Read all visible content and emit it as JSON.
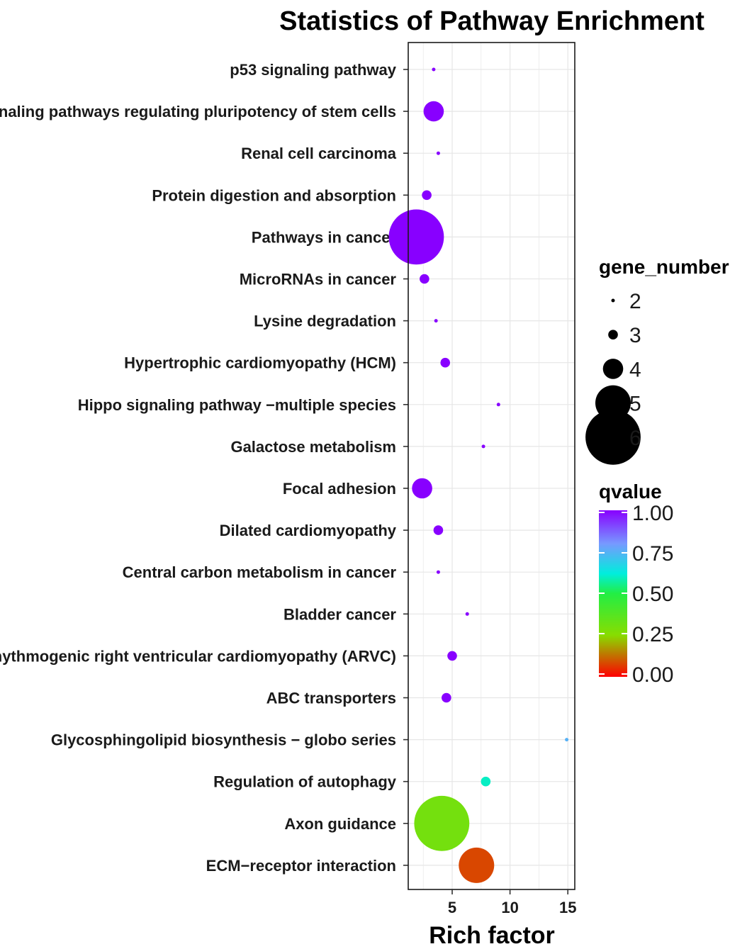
{
  "chart_data": {
    "type": "scatter",
    "title": "Statistics of Pathway Enrichment",
    "xlabel": "Rich factor",
    "ylabel": "",
    "xlim": [
      1.2,
      15.6
    ],
    "xticks": [
      5,
      10,
      15
    ],
    "grid": true,
    "size_legend": {
      "title": "gene_number",
      "values": [
        2,
        3,
        4,
        5,
        6
      ]
    },
    "color_legend": {
      "title": "qvalue",
      "ticks": [
        "1.00",
        "0.75",
        "0.50",
        "0.25",
        "0.00"
      ],
      "range": [
        0,
        1
      ]
    },
    "points": [
      {
        "pathway": "p53 signaling pathway",
        "rich_factor": 3.4,
        "gene_number": 2,
        "qvalue": 1.0
      },
      {
        "pathway": "Signaling pathways regulating pluripotency of stem cells",
        "rich_factor": 3.4,
        "gene_number": 4,
        "qvalue": 1.0
      },
      {
        "pathway": "Renal cell carcinoma",
        "rich_factor": 3.8,
        "gene_number": 2,
        "qvalue": 1.0
      },
      {
        "pathway": "Protein digestion and absorption",
        "rich_factor": 2.8,
        "gene_number": 3,
        "qvalue": 1.0
      },
      {
        "pathway": "Pathways in cancer",
        "rich_factor": 1.9,
        "gene_number": 6,
        "qvalue": 1.0
      },
      {
        "pathway": "MicroRNAs in cancer",
        "rich_factor": 2.6,
        "gene_number": 3,
        "qvalue": 1.0
      },
      {
        "pathway": "Lysine degradation",
        "rich_factor": 3.6,
        "gene_number": 2,
        "qvalue": 1.0
      },
      {
        "pathway": "Hypertrophic cardiomyopathy (HCM)",
        "rich_factor": 4.4,
        "gene_number": 3,
        "qvalue": 1.0
      },
      {
        "pathway": "Hippo signaling pathway −multiple species",
        "rich_factor": 9.0,
        "gene_number": 2,
        "qvalue": 1.0
      },
      {
        "pathway": "Galactose metabolism",
        "rich_factor": 7.7,
        "gene_number": 2,
        "qvalue": 1.0
      },
      {
        "pathway": "Focal adhesion",
        "rich_factor": 2.4,
        "gene_number": 4,
        "qvalue": 1.0
      },
      {
        "pathway": "Dilated cardiomyopathy",
        "rich_factor": 3.8,
        "gene_number": 3,
        "qvalue": 1.0
      },
      {
        "pathway": "Central carbon metabolism in cancer",
        "rich_factor": 3.8,
        "gene_number": 2,
        "qvalue": 1.0
      },
      {
        "pathway": "Bladder cancer",
        "rich_factor": 6.3,
        "gene_number": 2,
        "qvalue": 1.0
      },
      {
        "pathway": "Arrhythmogenic right ventricular cardiomyopathy (ARVC)",
        "rich_factor": 5.0,
        "gene_number": 3,
        "qvalue": 1.0
      },
      {
        "pathway": "ABC transporters",
        "rich_factor": 4.5,
        "gene_number": 3,
        "qvalue": 1.0
      },
      {
        "pathway": "Glycosphingolipid biosynthesis − globo series",
        "rich_factor": 14.9,
        "gene_number": 2,
        "qvalue": 0.75
      },
      {
        "pathway": "Regulation of autophagy",
        "rich_factor": 7.9,
        "gene_number": 3,
        "qvalue": 0.6
      },
      {
        "pathway": "Axon guidance",
        "rich_factor": 4.1,
        "gene_number": 6,
        "qvalue": 0.3
      },
      {
        "pathway": "ECM−receptor interaction",
        "rich_factor": 7.1,
        "gene_number": 5,
        "qvalue": 0.08
      }
    ]
  }
}
